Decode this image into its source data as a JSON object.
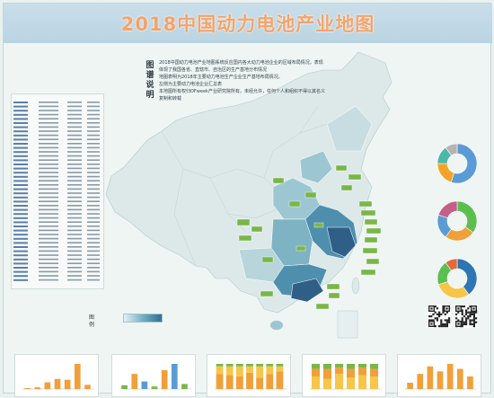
{
  "title": "2018中国动力电池产业地图",
  "legend_heading": "图谱说明",
  "description": [
    "2018中国动力电池产业地图系统反应国内各大动力电池企业的区域布局情况，表现",
    "体现了我国各省、直辖市、自治区的生产基地分布情况",
    "地图表明为2018年主要动力电池生产企业生产基地布局情况。",
    "左侧为主要动力电池企业汇总表",
    "本地图所有权归OFweek产业研究院所有。未经允许，任何个人和组织不得以其名义",
    "复制和转载"
  ],
  "map_legend_label": "图例",
  "colors": {
    "title": "#f4a36a",
    "title_bar": "#c2d9e6",
    "land_light": "#dfeaea",
    "land_mid": "#9cc7d2",
    "land_dark": "#4f8fae",
    "land_darkest": "#2f5f87",
    "label_green": "#7ab648"
  },
  "donuts": [
    {
      "slices": [
        0.55,
        0.2,
        0.15,
        0.1
      ],
      "colors": [
        "#5b9bd5",
        "#f4a32a",
        "#4cb8a8",
        "#b5b5b5"
      ]
    },
    {
      "slices": [
        0.35,
        0.25,
        0.2,
        0.2
      ],
      "colors": [
        "#5bbf4f",
        "#f0a03a",
        "#5b9bd5",
        "#c45f8a"
      ]
    },
    {
      "slices": [
        0.4,
        0.3,
        0.2,
        0.1
      ],
      "colors": [
        "#2e75b6",
        "#f6c64a",
        "#5bbf4f",
        "#e06b3a"
      ]
    }
  ],
  "bottom_charts": [
    {
      "type": "bar",
      "values": [
        1,
        2,
        8,
        12,
        11,
        30,
        5
      ],
      "colors": [
        "#f0a03a"
      ]
    },
    {
      "type": "bar",
      "values": [
        3,
        12,
        6,
        2,
        15,
        20,
        4
      ],
      "colors": [
        "#7ab648",
        "#f0a03a",
        "#5b9bd5"
      ]
    },
    {
      "type": "stacked",
      "values": [
        [
          60,
          30,
          10
        ],
        [
          55,
          35,
          10
        ],
        [
          50,
          40,
          10
        ],
        [
          65,
          25,
          10
        ],
        [
          45,
          45,
          10
        ],
        [
          60,
          30,
          10
        ],
        [
          70,
          20,
          10
        ]
      ],
      "colors": [
        "#f0a03a",
        "#f6c64a",
        "#7ab648"
      ]
    },
    {
      "type": "stacked",
      "values": [
        [
          50,
          30,
          20
        ],
        [
          40,
          40,
          20
        ],
        [
          60,
          25,
          15
        ],
        [
          45,
          35,
          20
        ],
        [
          55,
          30,
          15
        ],
        [
          50,
          30,
          20
        ]
      ],
      "colors": [
        "#f6c64a",
        "#f0a03a",
        "#7ab648"
      ]
    },
    {
      "type": "bar",
      "values": [
        5,
        12,
        18,
        14,
        20,
        16,
        10
      ],
      "colors": [
        "#f0a03a"
      ]
    }
  ]
}
